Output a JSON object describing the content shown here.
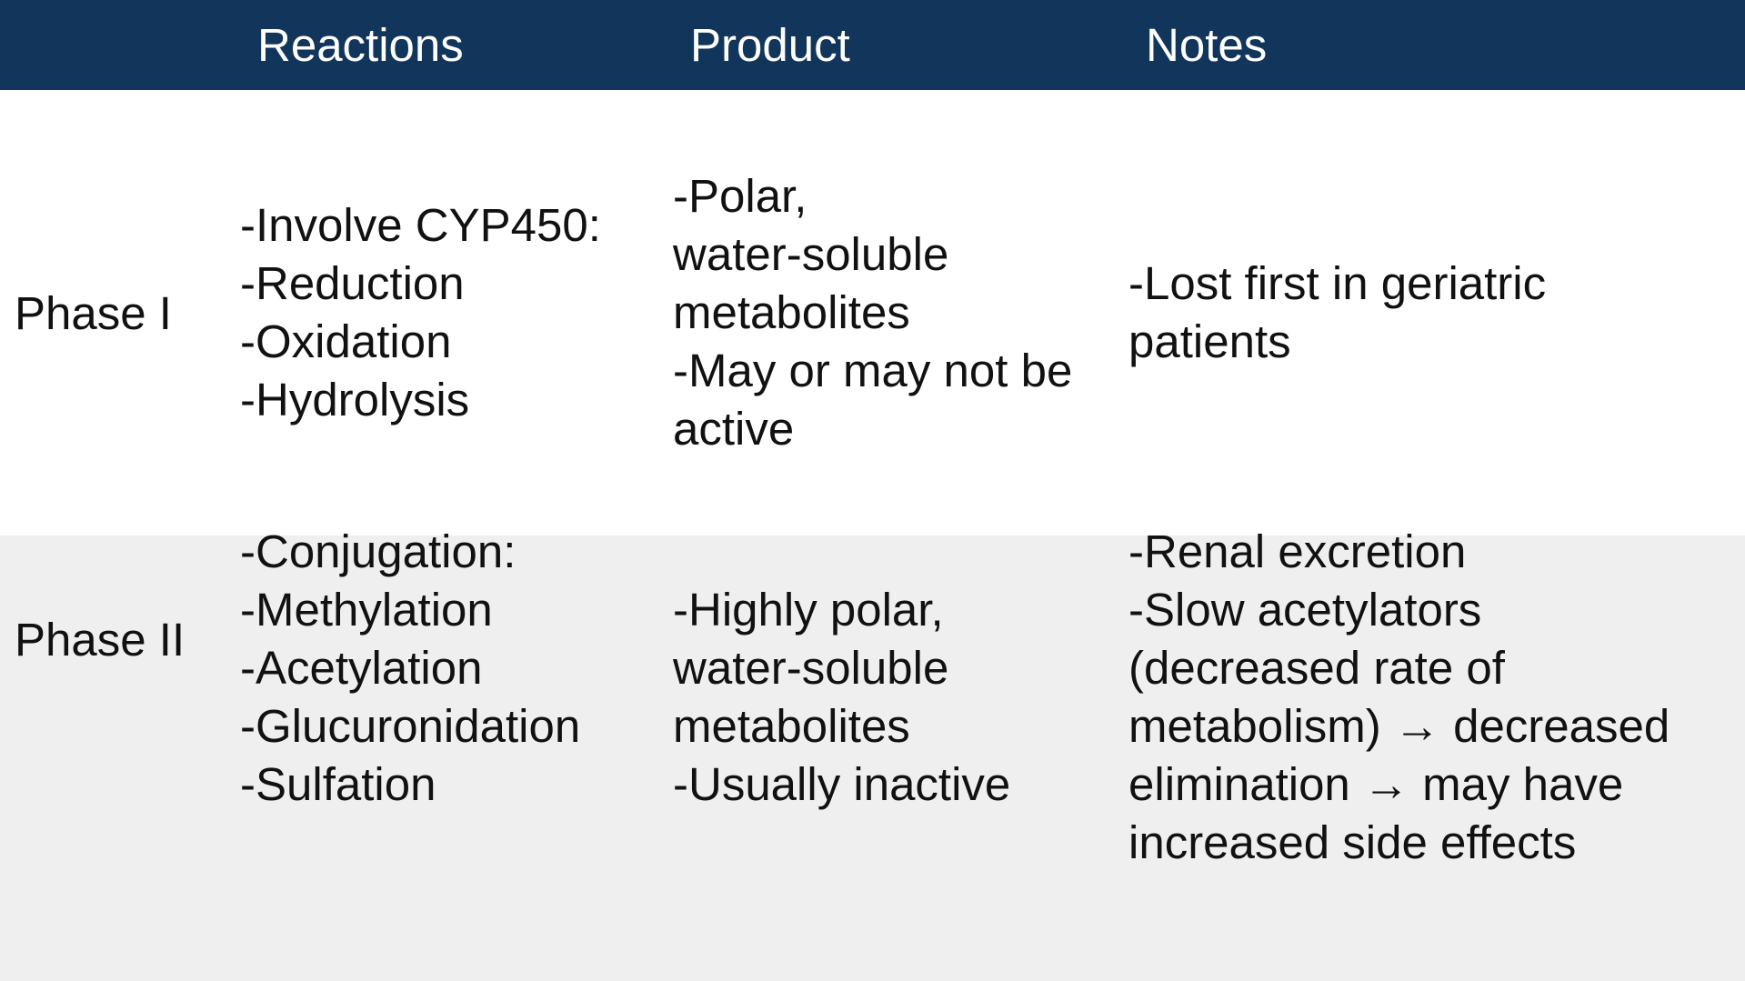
{
  "header": {
    "bg_color": "#12355b",
    "columns": [
      "Reactions",
      "Product",
      "Notes"
    ]
  },
  "rows": [
    {
      "phase": "Phase I",
      "reactions": [
        "-Involve CYP450:",
        "-Reduction",
        "-Oxidation",
        "-Hydrolysis"
      ],
      "product": [
        "-Polar,",
        "water-soluble",
        "metabolites",
        "-May or may not be",
        "active"
      ],
      "notes": [
        "-Lost first in geriatric",
        "patients"
      ]
    },
    {
      "phase": "Phase II",
      "reactions": [
        "-Conjugation:",
        "-Methylation",
        "-Acetylation",
        "-Glucuronidation",
        "-Sulfation"
      ],
      "product": [
        "-Highly polar,",
        "water-soluble",
        "metabolites",
        "-Usually inactive"
      ],
      "notes": [
        "-Renal excretion",
        "-Slow acetylators",
        "(decreased rate of",
        "metabolism) → decreased",
        "elimination → may have",
        "increased side effects"
      ]
    }
  ],
  "row_colors": [
    "#ffffff",
    "#efefef"
  ]
}
